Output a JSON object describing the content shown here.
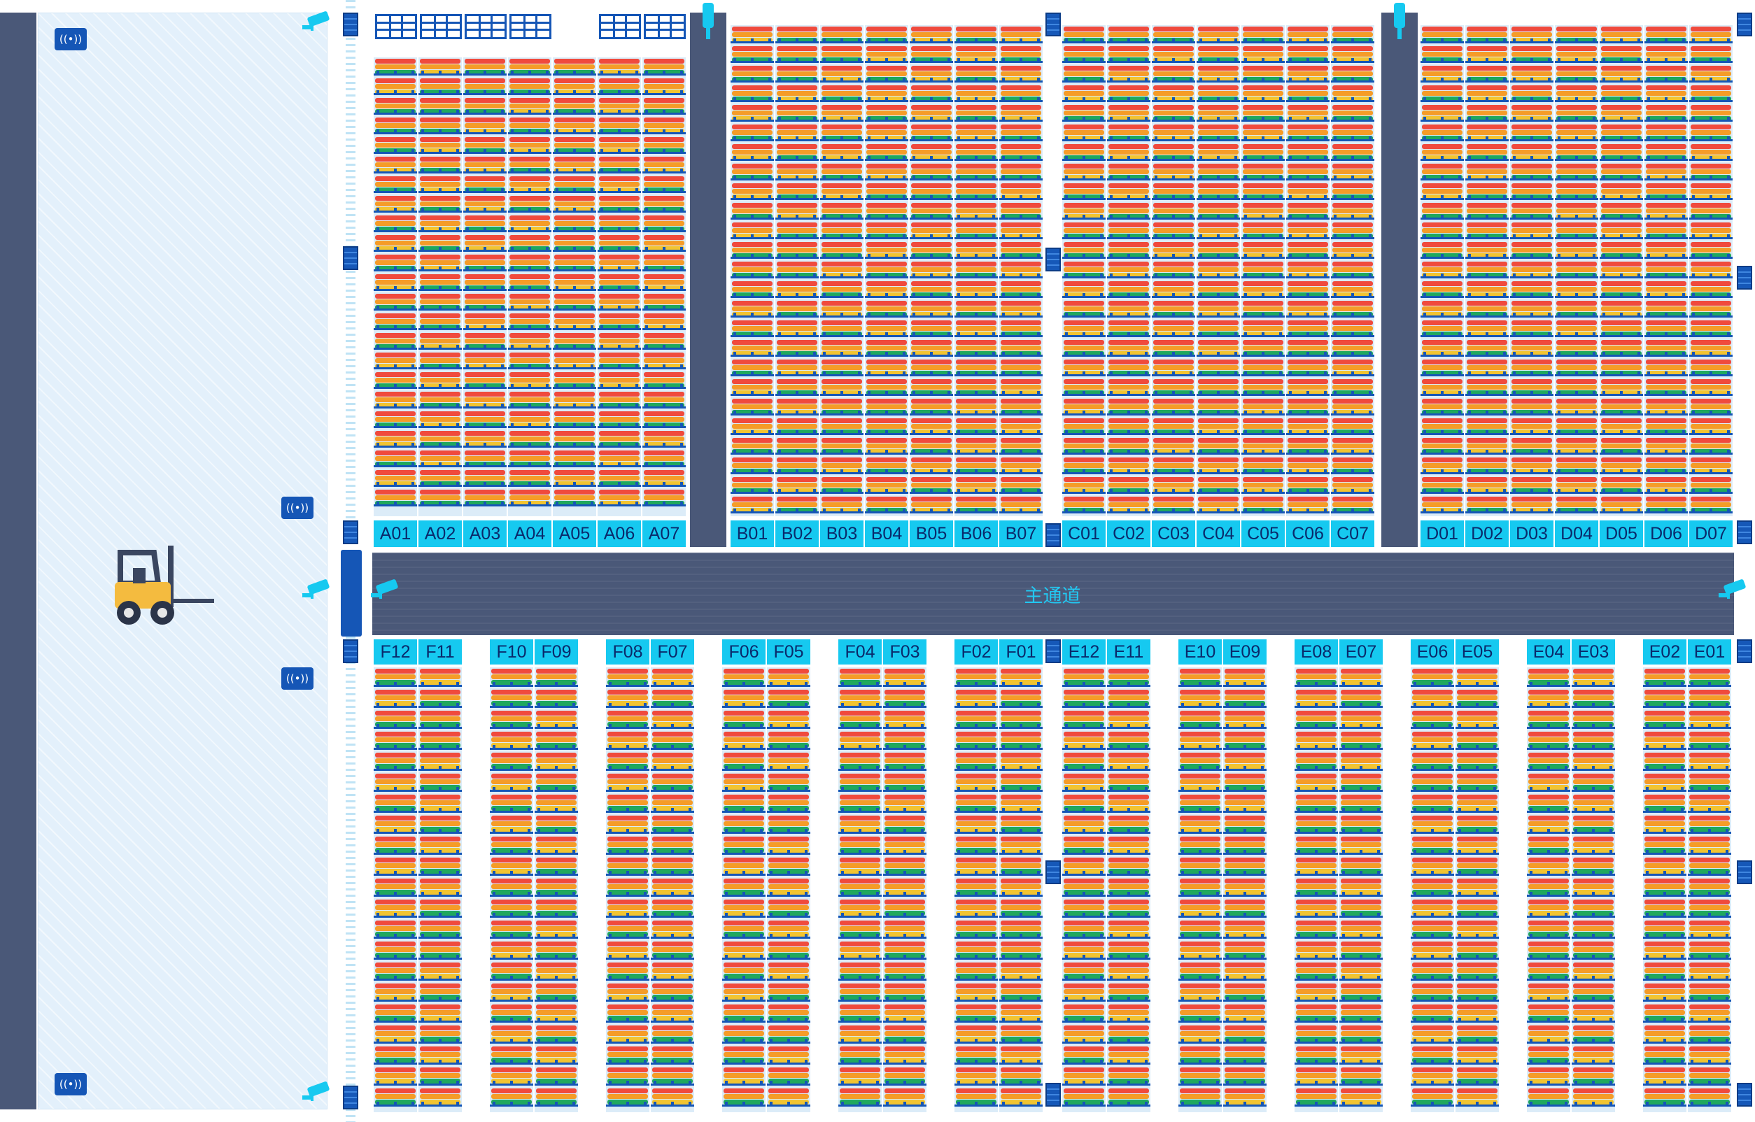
{
  "main_aisle": {
    "label": "主通道"
  },
  "colors": {
    "lane": "#4a5878",
    "bay_bg": "#dcecf8",
    "frame": "#1556b6",
    "label_bg": "#16c9f0",
    "label_text": "#0a2a6b",
    "strip_red": "#f04a3d",
    "strip_orange": "#f59c28",
    "strip_yellow": "#f2c431",
    "strip_green": "#20a85e",
    "strip_blue": "#2a6fd0"
  },
  "icons": [
    "wifi-sensor-icon",
    "camera-icon",
    "brick-pillar-icon",
    "forklift-icon"
  ],
  "top_zones": [
    {
      "zone": "A",
      "labels": [
        "A01",
        "A02",
        "A03",
        "A04",
        "A05",
        "A06",
        "A07"
      ]
    },
    {
      "zone": "B",
      "labels": [
        "B01",
        "B02",
        "B03",
        "B04",
        "B05",
        "B06",
        "B07"
      ]
    },
    {
      "zone": "C",
      "labels": [
        "C01",
        "C02",
        "C03",
        "C04",
        "C05",
        "C06",
        "C07"
      ]
    },
    {
      "zone": "D",
      "labels": [
        "D01",
        "D02",
        "D03",
        "D04",
        "D05",
        "D06",
        "D07"
      ]
    }
  ],
  "bottom_zones": [
    {
      "zone": "F",
      "labels": [
        "F12",
        "F11",
        "F10",
        "F09",
        "F08",
        "F07",
        "F06",
        "F05",
        "F04",
        "F03",
        "F02",
        "F01"
      ]
    },
    {
      "zone": "E",
      "labels": [
        "E12",
        "E11",
        "E10",
        "E09",
        "E08",
        "E07",
        "E06",
        "E05",
        "E04",
        "E03",
        "E02",
        "E01"
      ]
    }
  ]
}
